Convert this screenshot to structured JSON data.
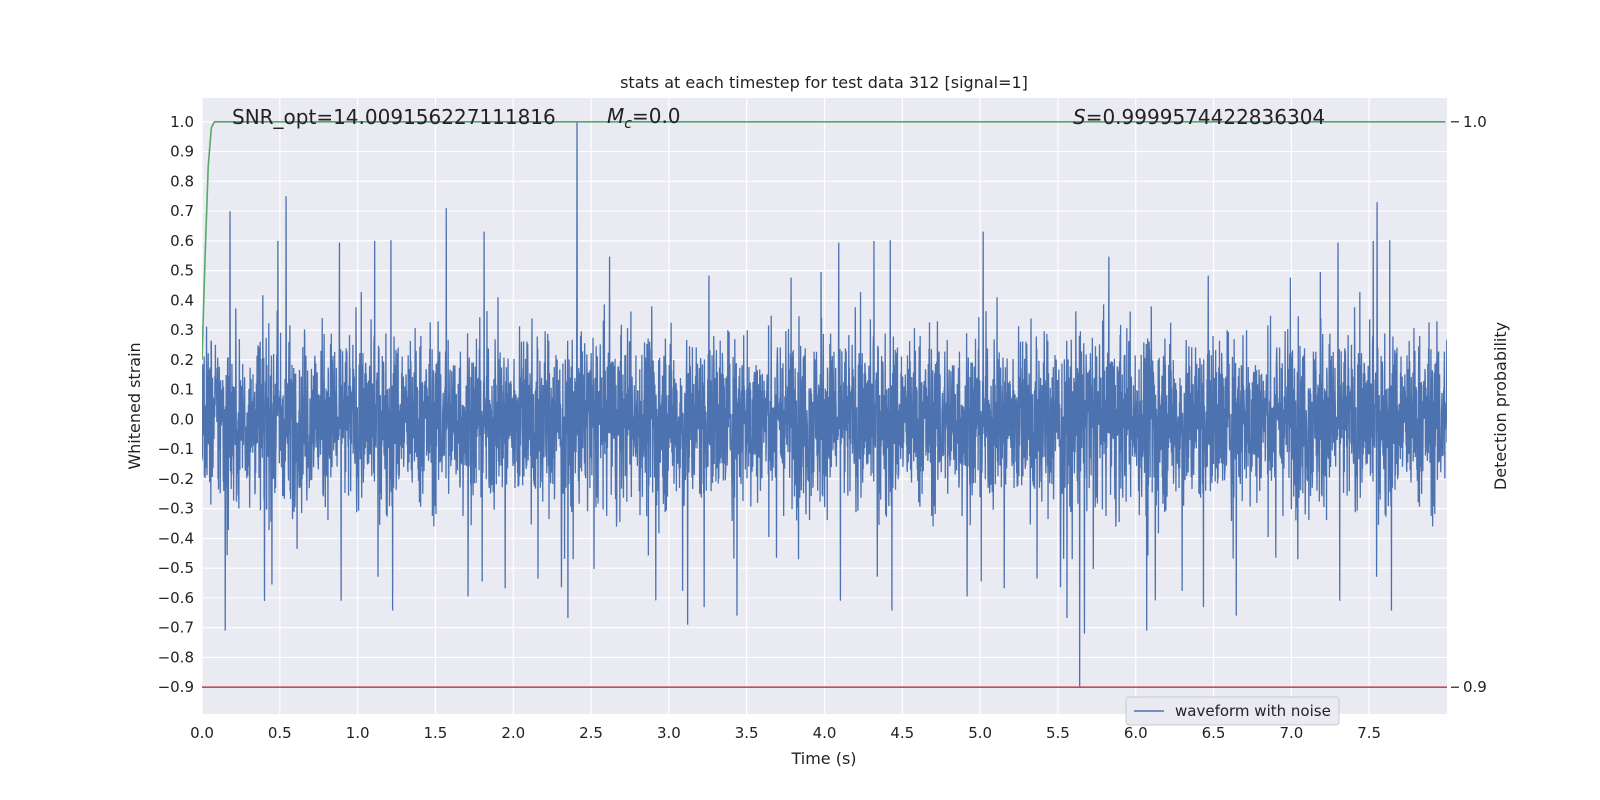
{
  "chart_data": {
    "type": "line",
    "title": "stats at each timestep for test data 312 [signal=1]",
    "xlabel": "Time (s)",
    "ylabel": "Whitened strain",
    "y2label": "Detection probability",
    "xlim": [
      0.0,
      8.0
    ],
    "ylim": [
      -0.99,
      1.08
    ],
    "x_ticks": [
      "0.0",
      "0.5",
      "1.0",
      "1.5",
      "2.0",
      "2.5",
      "3.0",
      "3.5",
      "4.0",
      "4.5",
      "5.0",
      "5.5",
      "6.0",
      "6.5",
      "7.0",
      "7.5"
    ],
    "y_ticks": [
      "1.0",
      "0.9",
      "0.8",
      "0.7",
      "0.6",
      "0.5",
      "0.4",
      "0.3",
      "0.2",
      "0.1",
      "0.0",
      "−0.1",
      "−0.2",
      "−0.3",
      "−0.4",
      "−0.5",
      "−0.6",
      "−0.7",
      "−0.8",
      "−0.9"
    ],
    "y2_ticks": [
      "1.0",
      "0.9"
    ],
    "grid": true,
    "legend_position": "bottom-right",
    "annotations": {
      "snr": "SNR_opt=14.009156227111816",
      "mc_symbol": "M",
      "mc_sub": "c",
      "mc_value": "=0.0",
      "s_symbol": "S",
      "s_value": "=0.9999574422836304"
    },
    "series": [
      {
        "name": "waveform with noise",
        "color": "#4c72b0",
        "kind": "noisy-waveform",
        "x_range": [
          0.0,
          8.0
        ],
        "typical_envelope": [
          -0.45,
          0.45
        ],
        "spikes": [
          {
            "x": 2.41,
            "y": 1.0
          },
          {
            "x": 5.64,
            "y": -0.9
          },
          {
            "x": 0.54,
            "y": 0.75
          },
          {
            "x": 7.55,
            "y": 0.73
          },
          {
            "x": 1.57,
            "y": 0.71
          },
          {
            "x": 0.18,
            "y": 0.7
          },
          {
            "x": 6.07,
            "y": -0.71
          },
          {
            "x": 0.15,
            "y": -0.71
          },
          {
            "x": 3.12,
            "y": -0.69
          },
          {
            "x": 5.67,
            "y": -0.72
          }
        ]
      },
      {
        "name": "",
        "color": "#55a868",
        "kind": "detection-probability",
        "x": [
          0.0,
          0.02,
          0.04,
          0.06,
          0.08,
          0.1,
          7.99
        ],
        "y": [
          0.2,
          0.55,
          0.85,
          0.98,
          1.0,
          1.0,
          1.0
        ]
      },
      {
        "name": "",
        "color": "#c44e52",
        "kind": "threshold",
        "x": [
          0.0,
          8.0
        ],
        "y": [
          -0.9,
          -0.9
        ]
      }
    ],
    "colors": {
      "axes_background": "#eaeaf2",
      "grid": "#ffffff",
      "waveform": "#4c72b0",
      "probability": "#55a868",
      "threshold": "#c44e52"
    }
  }
}
